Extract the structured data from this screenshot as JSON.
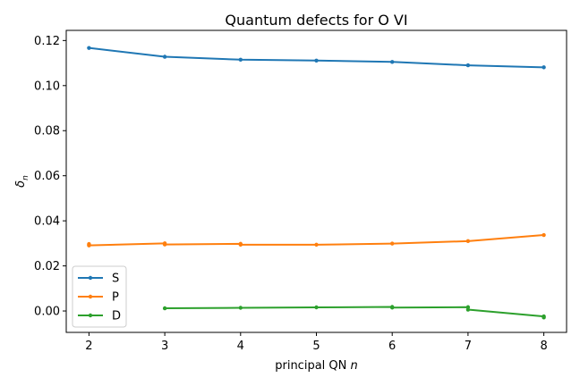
{
  "chart_data": {
    "type": "line",
    "title": "Quantum defects for O VI",
    "xlabel": "principal QN",
    "xlabel_var": "n",
    "ylabel_base": "δ",
    "ylabel_sub": "n",
    "xlim": [
      1.7,
      8.3
    ],
    "ylim": [
      -0.0095,
      0.1245
    ],
    "xticks": [
      "2",
      "3",
      "4",
      "5",
      "6",
      "7",
      "8"
    ],
    "yticks": [
      "0.00",
      "0.02",
      "0.04",
      "0.06",
      "0.08",
      "0.10",
      "0.12"
    ],
    "grid": false,
    "legend_position": "lower-left",
    "series": [
      {
        "name": "S",
        "color": "#1f77b4",
        "points": [
          [
            2,
            0.1167
          ],
          [
            3,
            0.1128
          ],
          [
            4,
            0.1115
          ],
          [
            5,
            0.1111
          ],
          [
            6,
            0.1105
          ],
          [
            7,
            0.109
          ],
          [
            8,
            0.1081
          ]
        ]
      },
      {
        "name": "P",
        "color": "#ff7f0e",
        "points": [
          [
            2,
            0.0297
          ],
          [
            2,
            0.0291
          ],
          [
            3,
            0.03
          ],
          [
            3,
            0.0295
          ],
          [
            4,
            0.0298
          ],
          [
            4,
            0.0294
          ],
          [
            5,
            0.0294
          ],
          [
            6,
            0.0299
          ],
          [
            7,
            0.031
          ],
          [
            8,
            0.0337
          ]
        ]
      },
      {
        "name": "D",
        "color": "#2ca02c",
        "points": [
          [
            3,
            0.0012
          ],
          [
            4,
            0.0014
          ],
          [
            5,
            0.0016
          ],
          [
            6,
            0.0018
          ],
          [
            6,
            0.0015
          ],
          [
            7,
            0.0017
          ],
          [
            7,
            0.0006
          ],
          [
            8,
            -0.0024
          ],
          [
            8,
            -0.0029
          ]
        ]
      }
    ]
  }
}
